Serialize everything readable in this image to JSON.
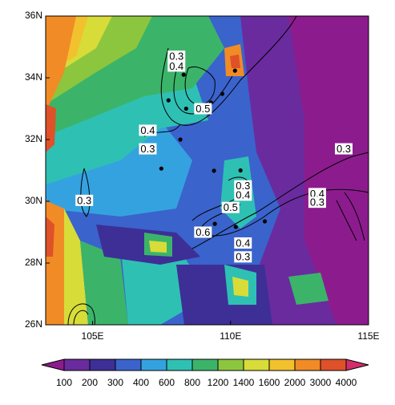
{
  "map": {
    "lon_range": [
      103.3,
      115
    ],
    "lat_range": [
      26,
      36
    ],
    "lon_ticks": [
      {
        "value": 105,
        "label": "105E"
      },
      {
        "value": 110,
        "label": "110E"
      },
      {
        "value": 115,
        "label": "115E"
      }
    ],
    "lat_ticks": [
      {
        "value": 26,
        "label": "26N"
      },
      {
        "value": 28,
        "label": "28N"
      },
      {
        "value": 30,
        "label": "30N"
      },
      {
        "value": 32,
        "label": "32N"
      },
      {
        "value": 34,
        "label": "34N"
      },
      {
        "value": 36,
        "label": "36N"
      }
    ],
    "colorbar": {
      "levels": [
        100,
        200,
        300,
        400,
        600,
        800,
        1200,
        1400,
        1600,
        2000,
        3000,
        4000
      ],
      "colors": [
        "#8c1c8e",
        "#6a2b9e",
        "#3d2f96",
        "#3a63cc",
        "#35a2e0",
        "#2fc0b4",
        "#3bb46a",
        "#8cc63e",
        "#d8dc38",
        "#f1c12e",
        "#f08b26",
        "#df5128",
        "#d22c6a"
      ]
    },
    "contour_labels": [
      {
        "text": "0.3",
        "lon": 108.04,
        "lat": 34.7
      },
      {
        "text": "0.4",
        "lon": 108.04,
        "lat": 34.38
      },
      {
        "text": "0.5",
        "lon": 109.0,
        "lat": 33.0
      },
      {
        "text": "0.4",
        "lon": 107.0,
        "lat": 32.3
      },
      {
        "text": "0.3",
        "lon": 107.0,
        "lat": 31.7
      },
      {
        "text": "0.3",
        "lon": 104.7,
        "lat": 30.03
      },
      {
        "text": "0.3",
        "lon": 110.45,
        "lat": 30.5
      },
      {
        "text": "0.4",
        "lon": 110.45,
        "lat": 30.2
      },
      {
        "text": "0.5",
        "lon": 110.0,
        "lat": 29.8
      },
      {
        "text": "0.6",
        "lon": 109.0,
        "lat": 29.0
      },
      {
        "text": "0.4",
        "lon": 110.45,
        "lat": 28.65
      },
      {
        "text": "0.3",
        "lon": 110.45,
        "lat": 28.2
      },
      {
        "text": "0.3",
        "lon": 114.1,
        "lat": 31.7
      },
      {
        "text": "0.4",
        "lon": 113.14,
        "lat": 30.25
      },
      {
        "text": "0.3",
        "lon": 113.14,
        "lat": 29.97
      }
    ],
    "stations": [
      {
        "lon": 110.16,
        "lat": 34.23
      },
      {
        "lon": 108.3,
        "lat": 34.1
      },
      {
        "lon": 107.75,
        "lat": 33.27
      },
      {
        "lon": 108.39,
        "lat": 33.0
      },
      {
        "lon": 109.29,
        "lat": 33.2
      },
      {
        "lon": 109.7,
        "lat": 33.48
      },
      {
        "lon": 108.18,
        "lat": 32.0
      },
      {
        "lon": 107.49,
        "lat": 31.06
      },
      {
        "lon": 109.4,
        "lat": 30.99
      },
      {
        "lon": 110.36,
        "lat": 31.0
      },
      {
        "lon": 104.58,
        "lat": 30.03
      },
      {
        "lon": 109.43,
        "lat": 29.27
      },
      {
        "lon": 110.19,
        "lat": 29.17
      },
      {
        "lon": 111.24,
        "lat": 29.35
      },
      {
        "lon": 110.5,
        "lat": 30.1
      }
    ]
  }
}
